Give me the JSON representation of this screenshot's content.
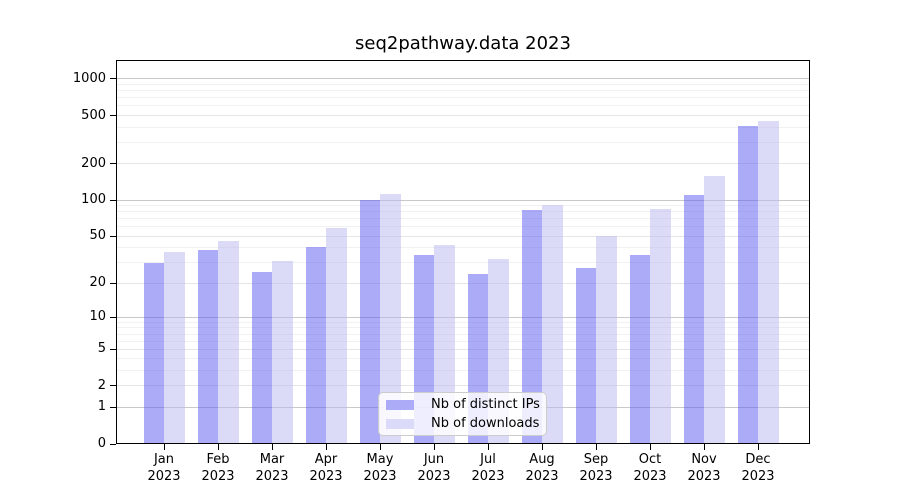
{
  "chart_data": {
    "type": "bar",
    "title": "seq2pathway.data 2023",
    "categories": [
      "Jan",
      "Feb",
      "Mar",
      "Apr",
      "May",
      "Jun",
      "Jul",
      "Aug",
      "Sep",
      "Oct",
      "Nov",
      "Dec"
    ],
    "x_tick_year": "2023",
    "series": [
      {
        "name": "Nb of distinct IPs",
        "base_color": "#5858f0",
        "alpha": 0.5,
        "rendered_color": "#ababf8",
        "values": [
          30,
          38,
          25,
          41,
          100,
          35,
          24,
          83,
          27,
          35,
          110,
          410
        ]
      },
      {
        "name": "Nb of downloads",
        "base_color": "#b8b8f2",
        "alpha": 0.5,
        "rendered_color": "#dbdbf9",
        "values": [
          37,
          46,
          31,
          59,
          112,
          42,
          32,
          91,
          50,
          84,
          160,
          452
        ]
      }
    ],
    "yscale": "log1p",
    "ylim": [
      0,
      1433
    ],
    "y_ticks": [
      0,
      1,
      2,
      5,
      10,
      20,
      50,
      100,
      200,
      500,
      1000
    ],
    "y_minor_ticks": [
      3,
      4,
      6,
      7,
      8,
      9,
      30,
      40,
      60,
      70,
      80,
      90,
      300,
      400,
      600,
      700,
      800,
      900
    ],
    "grid": true,
    "legend_position": "inside-bottom-center",
    "colors": {
      "background": "#ffffff",
      "axis": "#000000",
      "grid_major": "#c9c9c9",
      "grid_mid": "#e6e6e6",
      "grid_minor": "#f1f1f1",
      "legend_border": "#cccccc",
      "text": "#000000"
    }
  }
}
